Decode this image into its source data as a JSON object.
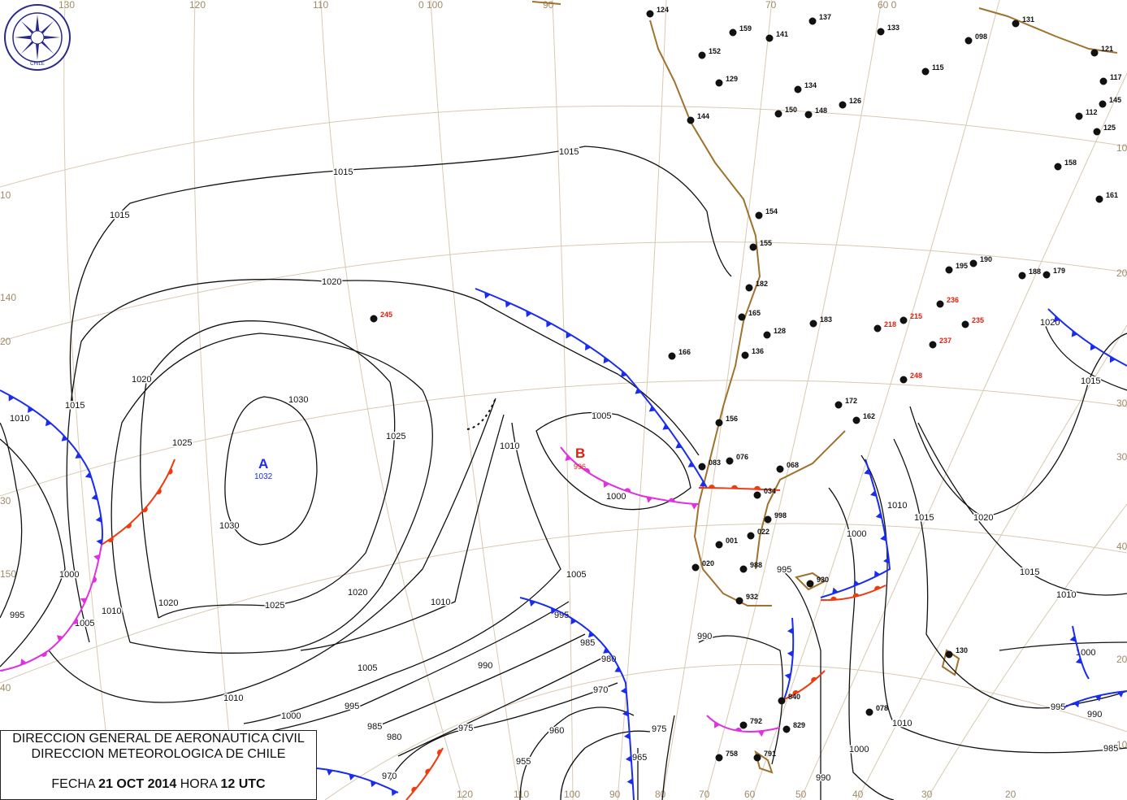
{
  "caption": {
    "line1": "DIRECCION GENERAL DE AERONAUTICA CIVIL",
    "line2": "DIRECCION METEOROLOGICA DE CHILE",
    "fecha_label": "FECHA",
    "fecha": "21 OCT 2014",
    "hora_label": "HORA",
    "hora": "12 UTC"
  },
  "logo": {
    "text_top": "DIRECCION METEOROLOGICA",
    "text_bottom": "CHILE"
  },
  "pressure_centers": [
    {
      "letter": "A",
      "value": "1032",
      "type": "high",
      "color": "#1a2cf0"
    },
    {
      "letter": "B",
      "value": "996",
      "type": "low",
      "color": "#e02010"
    }
  ],
  "graticule": {
    "top": [
      "130",
      "120",
      "110",
      "0 100",
      "90",
      "70",
      "60 0"
    ],
    "bottom": [
      "120",
      "110",
      "100",
      "90",
      "80",
      "70",
      "60",
      "50",
      "40",
      "30",
      "20"
    ],
    "left": [
      "10",
      "140",
      "20",
      "30",
      "150",
      "40"
    ],
    "right": [
      "10",
      "20",
      "30",
      "30",
      "40",
      "20",
      "10"
    ]
  },
  "isobars": {
    "labels": [
      "1015",
      "1015",
      "1015",
      "1015",
      "1015",
      "1015",
      "1020",
      "1020",
      "1020",
      "1020",
      "1020",
      "1020",
      "1025",
      "1025",
      "1025",
      "1030",
      "1030",
      "1010",
      "1010",
      "1010",
      "1010",
      "1010",
      "1010",
      "1010",
      "1010",
      "1005",
      "1005",
      "1005",
      "1005",
      "1015",
      "1000",
      "1000",
      "1000",
      "1000",
      "1000",
      "1000",
      "995",
      "995",
      "995",
      "995",
      "995",
      "990",
      "990",
      "990",
      "990",
      "985",
      "985",
      "985",
      "980",
      "980",
      "975",
      "975",
      "970",
      "970",
      "965",
      "960",
      "955"
    ]
  },
  "stations": [
    {
      "id": "245",
      "color": "#e02010"
    },
    {
      "id": "166"
    },
    {
      "id": "124"
    },
    {
      "id": "159"
    },
    {
      "id": "141"
    },
    {
      "id": "137"
    },
    {
      "id": "133"
    },
    {
      "id": "152"
    },
    {
      "id": "098"
    },
    {
      "id": "131"
    },
    {
      "id": "126"
    },
    {
      "id": "121"
    },
    {
      "id": "129"
    },
    {
      "id": "144"
    },
    {
      "id": "150"
    },
    {
      "id": "148"
    },
    {
      "id": "134"
    },
    {
      "id": "115"
    },
    {
      "id": "117"
    },
    {
      "id": "145"
    },
    {
      "id": "112"
    },
    {
      "id": "125"
    },
    {
      "id": "154"
    },
    {
      "id": "155"
    },
    {
      "id": "182"
    },
    {
      "id": "165"
    },
    {
      "id": "128"
    },
    {
      "id": "136"
    },
    {
      "id": "183"
    },
    {
      "id": "172"
    },
    {
      "id": "156"
    },
    {
      "id": "162"
    },
    {
      "id": "083"
    },
    {
      "id": "076"
    },
    {
      "id": "068"
    },
    {
      "id": "034"
    },
    {
      "id": "998"
    },
    {
      "id": "022"
    },
    {
      "id": "001"
    },
    {
      "id": "020"
    },
    {
      "id": "988"
    },
    {
      "id": "932"
    },
    {
      "id": "930"
    },
    {
      "id": "130"
    },
    {
      "id": "078"
    },
    {
      "id": "840"
    },
    {
      "id": "829"
    },
    {
      "id": "792"
    },
    {
      "id": "758"
    },
    {
      "id": "791"
    },
    {
      "id": "236",
      "color": "#e02010"
    },
    {
      "id": "235",
      "color": "#e02010"
    },
    {
      "id": "215",
      "color": "#e02010"
    },
    {
      "id": "218",
      "color": "#e02010"
    },
    {
      "id": "248",
      "color": "#e02010"
    },
    {
      "id": "237",
      "color": "#e02010"
    },
    {
      "id": "195"
    },
    {
      "id": "190"
    },
    {
      "id": "179"
    },
    {
      "id": "188"
    },
    {
      "id": "158"
    },
    {
      "id": "161"
    }
  ],
  "colors": {
    "cold_front": "#1a2cf0",
    "warm_front": "#f03a10",
    "occluded_front": "#e030e0",
    "coast": "#a0722d",
    "graticule": "#d8c9b0"
  }
}
